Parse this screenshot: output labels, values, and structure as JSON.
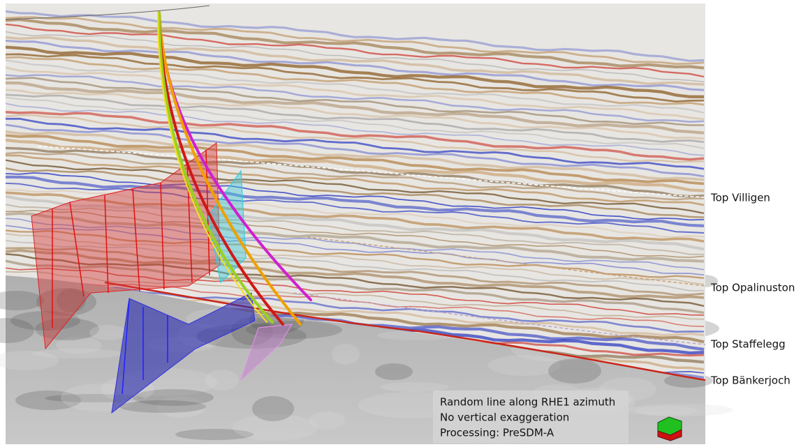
{
  "horizons": [
    {
      "label": "Top Villigen"
    },
    {
      "label": "Top Opalinuston"
    },
    {
      "label": "Top Staffelegg"
    },
    {
      "label": "Top Bänkerjoch"
    }
  ],
  "caption": {
    "lines": [
      "Random line along RHE1 azimuth",
      "No vertical exaggeration",
      "Processing: PreSDM-A"
    ]
  }
}
